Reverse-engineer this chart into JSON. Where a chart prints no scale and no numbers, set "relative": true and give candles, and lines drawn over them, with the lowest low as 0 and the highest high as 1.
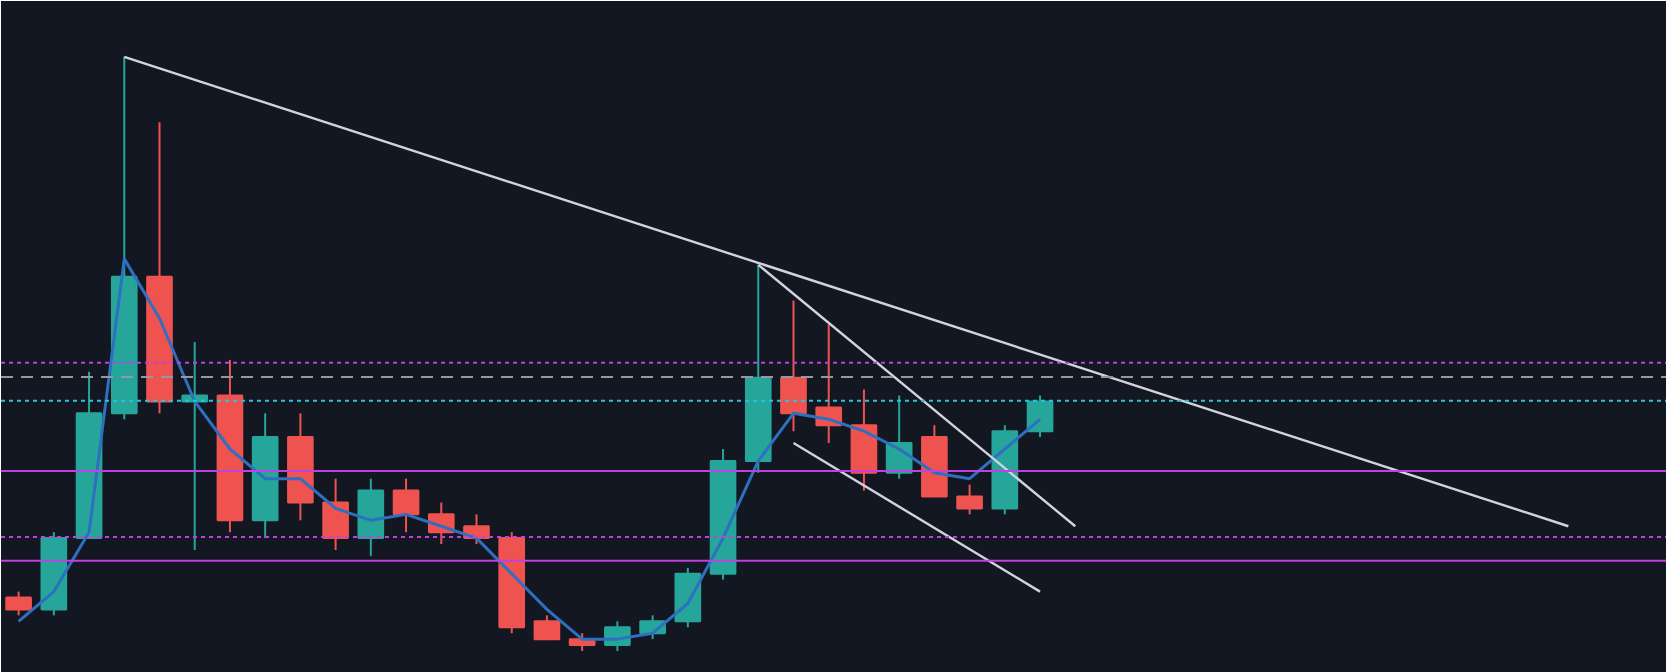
{
  "chart_data": {
    "type": "candlestick",
    "relative": true,
    "categories": [
      null,
      null,
      null,
      null,
      null,
      null,
      null,
      null,
      null,
      null,
      null,
      null,
      null,
      null,
      null,
      null,
      null,
      null,
      null,
      null,
      null,
      null,
      null,
      null,
      null,
      null,
      null,
      null,
      null,
      null,
      null,
      null,
      null,
      null,
      null,
      null,
      null,
      null,
      null,
      null,
      null,
      null,
      null,
      null,
      null
    ],
    "ohlc": [
      [
        0.09,
        0.1,
        0.06,
        0.07
      ],
      [
        0.07,
        0.2,
        0.06,
        0.19
      ],
      [
        0.19,
        0.47,
        0.19,
        0.4
      ],
      [
        0.4,
        1.0,
        0.39,
        0.63
      ],
      [
        0.63,
        0.89,
        0.4,
        0.42
      ],
      [
        0.42,
        0.52,
        0.17,
        0.43
      ],
      [
        0.43,
        0.49,
        0.2,
        0.22
      ],
      [
        0.22,
        0.4,
        0.19,
        0.36
      ],
      [
        0.36,
        0.4,
        0.22,
        0.25
      ],
      [
        0.25,
        0.29,
        0.17,
        0.19
      ],
      [
        0.19,
        0.29,
        0.16,
        0.27
      ],
      [
        0.27,
        0.29,
        0.2,
        0.23
      ],
      [
        0.23,
        0.25,
        0.18,
        0.2
      ],
      [
        0.21,
        0.23,
        0.18,
        0.19
      ],
      [
        0.19,
        0.2,
        0.03,
        0.04
      ],
      [
        0.05,
        0.06,
        0.02,
        0.02
      ],
      [
        0.02,
        0.03,
        0.0,
        0.01
      ],
      [
        0.01,
        0.05,
        0.0,
        0.04
      ],
      [
        0.03,
        0.06,
        0.02,
        0.05
      ],
      [
        0.05,
        0.14,
        0.04,
        0.13
      ],
      [
        0.13,
        0.34,
        0.12,
        0.32
      ],
      [
        0.32,
        0.65,
        0.3,
        0.46
      ],
      [
        0.46,
        0.59,
        0.37,
        0.4
      ],
      [
        0.41,
        0.55,
        0.35,
        0.38
      ],
      [
        0.38,
        0.44,
        0.27,
        0.3
      ],
      [
        0.3,
        0.43,
        0.29,
        0.35
      ],
      [
        0.36,
        0.38,
        0.26,
        0.26
      ],
      [
        0.26,
        0.28,
        0.23,
        0.24
      ],
      [
        0.24,
        0.38,
        0.23,
        0.37
      ],
      [
        0.37,
        0.43,
        0.36,
        0.42
      ],
      null,
      null,
      null,
      null,
      null,
      null,
      null,
      null,
      null,
      null,
      null,
      null,
      null,
      null,
      null
    ],
    "colors": [
      "#ef5350",
      "#26a69a",
      "#26a69a",
      "#26a69a",
      "#ef5350",
      "#26a69a",
      "#ef5350",
      "#26a69a",
      "#ef5350",
      "#ef5350",
      "#26a69a",
      "#ef5350",
      "#ef5350",
      "#ef5350",
      "#ef5350",
      "#ef5350",
      "#ef5350",
      "#26a69a",
      "#26a69a",
      "#26a69a",
      "#26a69a",
      "#26a69a",
      "#ef5350",
      "#ef5350",
      "#ef5350",
      "#26a69a",
      "#ef5350",
      "#ef5350",
      "#26a69a",
      "#26a69a",
      null,
      null,
      null,
      null,
      null,
      null,
      null,
      null,
      null,
      null,
      null,
      null,
      null,
      null,
      null
    ],
    "series": [
      {
        "type": "line",
        "color": "#2f6fc0",
        "values": [
          0.05,
          0.1,
          0.2,
          0.66,
          0.56,
          0.42,
          0.34,
          0.29,
          0.29,
          0.24,
          0.22,
          0.23,
          0.21,
          0.19,
          0.13,
          0.07,
          0.02,
          0.02,
          0.03,
          0.08,
          0.19,
          0.32,
          0.4,
          0.39,
          0.37,
          0.34,
          0.3,
          0.29,
          0.34,
          0.39,
          null,
          null,
          null,
          null,
          null,
          null,
          null,
          null,
          null,
          null,
          null,
          null,
          null,
          null,
          null
        ]
      },
      {
        "type": "line",
        "color": "#d1d4dc",
        "values": [
          null,
          null,
          null,
          1.0,
          null,
          null,
          null,
          null,
          null,
          null,
          null,
          null,
          null,
          null,
          null,
          null,
          null,
          null,
          null,
          null,
          null,
          null,
          null,
          null,
          null,
          null,
          null,
          null,
          null,
          null,
          null,
          null,
          null,
          null,
          null,
          null,
          null,
          null,
          null,
          null,
          null,
          null,
          null,
          null,
          0.21
        ]
      },
      {
        "type": "line",
        "color": "#d1d4dc",
        "values": [
          null,
          null,
          null,
          null,
          null,
          null,
          null,
          null,
          null,
          null,
          null,
          null,
          null,
          null,
          null,
          null,
          null,
          null,
          null,
          null,
          null,
          0.65,
          null,
          null,
          null,
          null,
          null,
          null,
          null,
          null,
          0.21,
          null,
          null,
          null,
          null,
          null,
          null,
          null,
          null,
          null,
          null,
          null,
          null,
          null,
          null
        ]
      },
      {
        "type": "line",
        "color": "#d1d4dc",
        "values": [
          null,
          null,
          null,
          null,
          null,
          null,
          null,
          null,
          null,
          null,
          null,
          null,
          null,
          null,
          null,
          null,
          null,
          null,
          null,
          null,
          null,
          null,
          0.35,
          null,
          null,
          null,
          null,
          null,
          null,
          0.1,
          null,
          null,
          null,
          null,
          null,
          null,
          null,
          null,
          null,
          null,
          null,
          null,
          null,
          null,
          null
        ]
      }
    ],
    "ref_lines": [
      {
        "axis": "y",
        "value": 0.485,
        "color": "#c040e0",
        "line_style": "dotted"
      },
      {
        "axis": "y",
        "value": 0.461,
        "color": "#9598a1",
        "line_style": "dashed"
      },
      {
        "axis": "y",
        "value": 0.421,
        "color": "#26c6da",
        "line_style": "dotted"
      },
      {
        "axis": "y",
        "value": 0.303,
        "color": "#c040e0",
        "line_style": "solid"
      },
      {
        "axis": "y",
        "value": 0.192,
        "color": "#c040e0",
        "line_style": "dotted"
      },
      {
        "axis": "y",
        "value": 0.152,
        "color": "#c040e0",
        "line_style": "solid"
      }
    ]
  }
}
